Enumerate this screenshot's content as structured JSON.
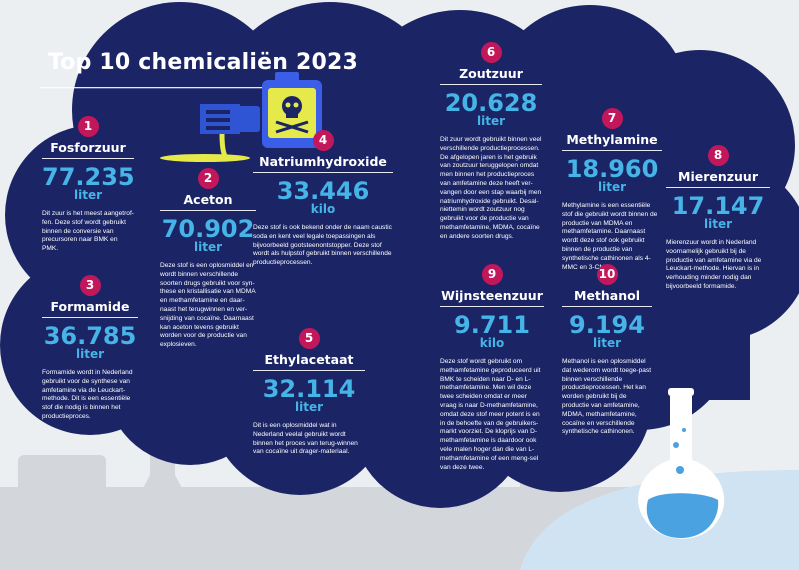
{
  "title": "Top 10 chemicaliën 2023",
  "colors": {
    "navy": "#1b2566",
    "accent": "#46b4e6",
    "badge": "#c2185b",
    "liquid": "#4aa3e0"
  },
  "icons": [
    "chemical-canister-icon",
    "skull-icon",
    "hand-icon",
    "flask-icon"
  ],
  "items": [
    {
      "rank": "1",
      "name": "Fosforzuur",
      "value": "77.235",
      "unit": "liter",
      "desc": "Dit zuur is het meest aangetrof-fen. Deze stof wordt gebruikt binnen de conversie van precursoren naar BMK en PMK."
    },
    {
      "rank": "2",
      "name": "Aceton",
      "value": "70.902",
      "unit": "liter",
      "desc": "Deze stof is een oplosmiddel en wordt binnen verschillende soorten drugs gebruikt voor syn-these en kristallisatie van MDMA en methamfetamine en daar-naast het terugwinnen en ver-snijding van cocaïne. Daarnaast kan aceton tevens gebruikt worden voor de productie van explosieven."
    },
    {
      "rank": "3",
      "name": "Formamide",
      "value": "36.785",
      "unit": "liter",
      "desc": "Formamide wordt in Nederland gebruikt voor de synthese van amfetamine via de Leuckart-methode. Dit is een essentiële stof die nodig is binnen het productieproces."
    },
    {
      "rank": "4",
      "name": "Natriumhydroxide",
      "value": "33.446",
      "unit": "kilo",
      "desc": "Deze stof is ook bekend onder de naam caustic soda en kent veel legale toepassingen als bijvoorbeeld gootsteenontstopper. Deze stof wordt als hulpstof gebruikt binnen verschillende productieprocessen."
    },
    {
      "rank": "5",
      "name": "Ethylacetaat",
      "value": "32.114",
      "unit": "liter",
      "desc": "Dit is een oplosmiddel wat in Nederland veelal gebruikt wordt binnen het proces van terug-winnen van cocaïne uit drager-materiaal."
    },
    {
      "rank": "6",
      "name": "Zoutzuur",
      "value": "20.628",
      "unit": "liter",
      "desc": "Dit zuur wordt gebruikt binnen veel verschillende productieprocessen. De afgelopen jaren is het gebruik van zoutzuur teruggelopen omdat men binnen het productieproces van amfetamine deze heeft ver-vangen door een stap waarbij men natriumhydroxide gebruikt. Desal-niettemin wordt zoutzuur nog gebruikt voor de productie van methamfetamine, MDMA, cocaïne en andere soorten drugs."
    },
    {
      "rank": "7",
      "name": "Methylamine",
      "value": "18.960",
      "unit": "liter",
      "desc": "Methylamine is een essentiële stof die gebruikt wordt binnen de productie van MDMA en methamfetamine. Daarnaast wordt deze stof ook gebruikt binnen de productie van synthetische cathinonen als 4-MMC en 3-CMC."
    },
    {
      "rank": "8",
      "name": "Mierenzuur",
      "value": "17.147",
      "unit": "liter",
      "desc": "Mierenzuur wordt in Nederland voornamelijk gebruikt bij de productie van amfetamine via de Leuckart-methode. Hiervan is in verhouding minder nodig dan bijvoorbeeld formamide."
    },
    {
      "rank": "9",
      "name": "Wijnsteenzuur",
      "value": "9.711",
      "unit": "kilo",
      "desc": "Deze stof wordt gebruikt om methamfetamine geproduceerd uit BMK te scheiden naar D- en L-methamfetamine. Men wil deze twee scheiden omdat er meer vraag is naar D-methamfetamine, omdat deze stof meer potent is en in de behoefte van de gebruikers-markt voorziet. De kloprijs van D-methamfetamine is daardoor ook vele malen hoger dan die van L-methamfetamine of een meng-sel van deze twee."
    },
    {
      "rank": "10",
      "name": "Methanol",
      "value": "9.194",
      "unit": "liter",
      "desc": "Methanol is een oplosmiddel dat wederom wordt toege-past binnen verschillende productieprocessen. Het kan worden gebruikt bij de productie van amfetamine, MDMA, methamfetamine, cocaïne en verschillende synthetische cathinonen."
    }
  ]
}
